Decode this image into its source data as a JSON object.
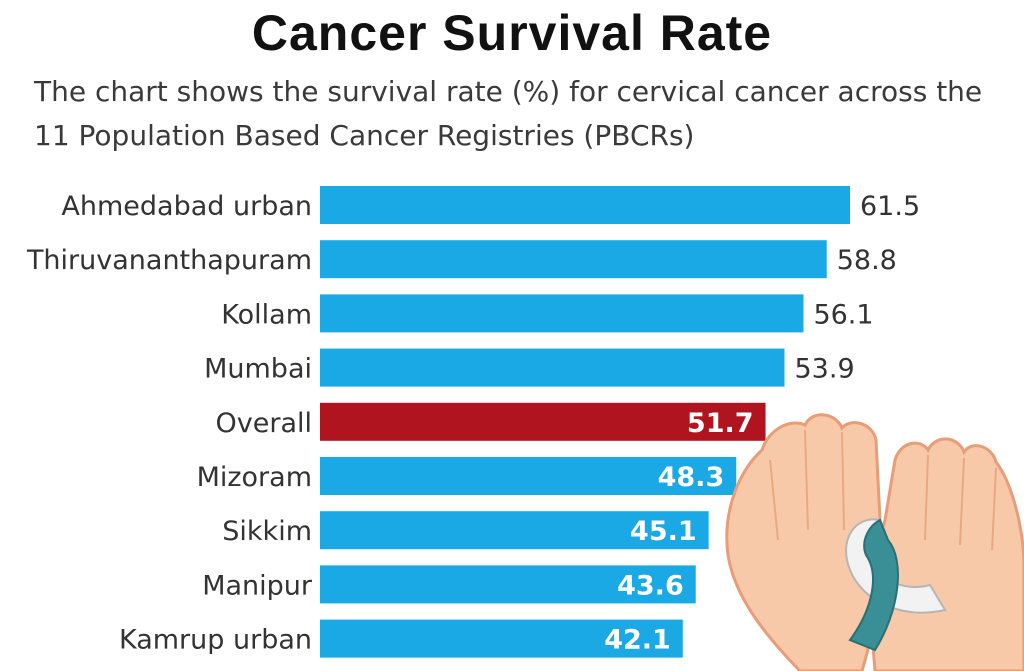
{
  "title": "Cancer Survival Rate",
  "subtitle": "The chart shows the survival rate (%) for cervical cancer across the 11 Population Based Cancer Registries (PBCRs)",
  "colors": {
    "bar": "#1ba9e6",
    "highlight": "#b0141f",
    "label": "#333333",
    "value_outside": "#333333",
    "value_inside": "#ffffff"
  },
  "chart_data": {
    "type": "bar",
    "orientation": "horizontal",
    "title": "Cancer Survival Rate",
    "xlabel": "",
    "ylabel": "",
    "xlim": [
      0,
      61.5
    ],
    "categories": [
      "Ahmedabad urban",
      "Thiruvananthapuram",
      "Kollam",
      "Mumbai",
      "Overall",
      "Mizoram",
      "Sikkim",
      "Manipur",
      "Kamrup urban"
    ],
    "values": [
      61.5,
      58.8,
      56.1,
      53.9,
      51.7,
      48.3,
      45.1,
      43.6,
      42.1
    ],
    "labels": [
      "61.5",
      "58.8",
      "56.1",
      "53.9",
      "51.7",
      "48.3",
      "45.1",
      "43.6",
      "42.1"
    ],
    "highlight": [
      "Overall"
    ],
    "value_label_inside": [
      "Overall",
      "Mizoram",
      "Sikkim",
      "Manipur",
      "Kamrup urban"
    ]
  }
}
